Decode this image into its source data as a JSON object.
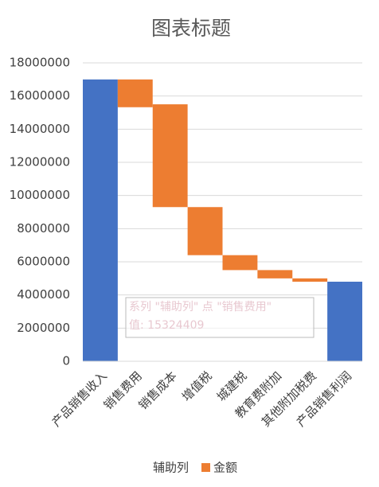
{
  "chart_data": {
    "type": "stacked-bar",
    "title": "图表标题",
    "categories": [
      "产品销售收入",
      "销售费用",
      "销售成本",
      "增值税",
      "城建税",
      "教育费附加",
      "其他附加税费",
      "产品销售利润"
    ],
    "series": [
      {
        "name": "辅助列",
        "color": "none",
        "values": [
          0,
          15324409,
          9300000,
          6400000,
          5500000,
          5000000,
          4800000,
          0
        ]
      },
      {
        "name": "金额",
        "color": "#ed7d31",
        "colors": [
          "#4472c4",
          "#ed7d31",
          "#ed7d31",
          "#ed7d31",
          "#ed7d31",
          "#ed7d31",
          "#ed7d31",
          "#4472c4"
        ],
        "values": [
          17000000,
          1675591,
          6200000,
          2900000,
          900000,
          500000,
          200000,
          4800000
        ]
      }
    ],
    "ylim": [
      0,
      18000000
    ],
    "yticks": [
      0,
      2000000,
      4000000,
      6000000,
      8000000,
      10000000,
      12000000,
      14000000,
      16000000,
      18000000
    ],
    "grid": true,
    "legend": "bottom",
    "tooltip": {
      "line1": "系列 \"辅助列\" 点 \"销售费用\"",
      "line2": "值: 15324409"
    }
  }
}
